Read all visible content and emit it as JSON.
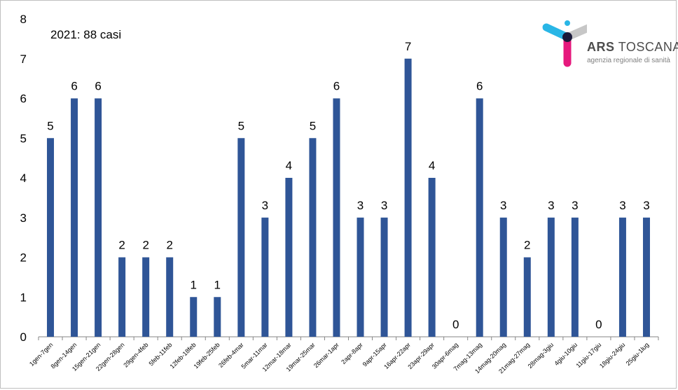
{
  "annotation": "2021: 88 casi",
  "logo": {
    "name_bold": "ARS",
    "name_rest": " TOSCANA",
    "tagline": "agenzia regionale di sanità",
    "icon": "ars-person-logo-icon"
  },
  "colors": {
    "bar": "#2f5597",
    "axis": "#868686"
  },
  "chart_data": {
    "type": "bar",
    "title": "",
    "xlabel": "",
    "ylabel": "",
    "ylim": [
      0,
      8
    ],
    "yticks": [
      "0",
      "1",
      "2",
      "3",
      "4",
      "5",
      "6",
      "7",
      "8"
    ],
    "grid": false,
    "legend": "none",
    "categories": [
      "1gen-7gen",
      "8gen-14gen",
      "15gen-21gen",
      "22gen-28gen",
      "29gen-4feb",
      "5feb-11feb",
      "12feb-18feb",
      "19feb-25feb",
      "26feb-4mar",
      "5mar-11mar",
      "12mar-18mar",
      "19mar-25mar",
      "26mar-1apr",
      "2apr-8apr",
      "9apr-15apr",
      "16apr-22apr",
      "23apr-29apr",
      "30apr-6mag",
      "7mag-13mag",
      "14mag-20mag",
      "21mag-27mag",
      "28mag-3giu",
      "4giu-10giu",
      "11giu-17giu",
      "18giu-24giu",
      "25giu-1lug"
    ],
    "values": [
      5,
      6,
      6,
      2,
      2,
      2,
      1,
      1,
      5,
      3,
      4,
      5,
      6,
      3,
      3,
      7,
      4,
      0,
      6,
      3,
      2,
      3,
      3,
      0,
      3,
      3
    ],
    "data_labels": [
      "5",
      "6",
      "6",
      "2",
      "2",
      "2",
      "1",
      "1",
      "5",
      "3",
      "4",
      "5",
      "6",
      "3",
      "3",
      "7",
      "4",
      "0",
      "6",
      "3",
      "2",
      "3",
      "3",
      "0",
      "3",
      "3"
    ]
  }
}
